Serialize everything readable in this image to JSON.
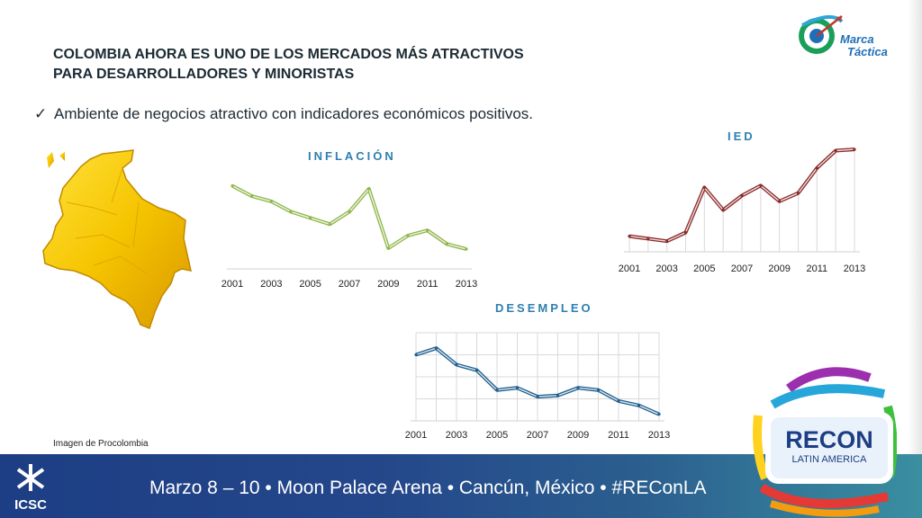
{
  "slide": {
    "title_line1": "COLOMBIA AHORA ES UNO DE LOS MERCADOS MÁS ATRACTIVOS",
    "title_line2": "PARA DESARROLLADORES Y MINORISTAS",
    "bullet": "Ambiente de negocios atractivo con indicadores económicos positivos.",
    "bullet_icon": "check-icon",
    "caption": "Imagen de Procolombia"
  },
  "logo": {
    "line1": "Marca",
    "line2": "Táctica"
  },
  "footer": {
    "text": "Marzo 8 – 10 • Moon Palace Arena • Cancún, México • #REConLA",
    "icsc_label": "ICSC",
    "recon_label": "RECON",
    "recon_sub": "LATIN AMERICA"
  },
  "colors": {
    "title": "#1c2a33",
    "chart_title": "#2f7fb0",
    "inflacion_line": "#8fb64a",
    "ied_line": "#8b2a2a",
    "desempleo_line": "#1f5f8f",
    "footer": "#1d3e84"
  },
  "chart_data": [
    {
      "type": "line",
      "title": "INFLACIÓN",
      "x": [
        2001,
        2002,
        2003,
        2004,
        2005,
        2006,
        2007,
        2008,
        2009,
        2010,
        2011,
        2012,
        2013
      ],
      "tick_labels": [
        "2001",
        "2003",
        "2005",
        "2007",
        "2009",
        "2011",
        "2013"
      ],
      "values": [
        8.0,
        7.0,
        6.5,
        5.5,
        4.9,
        4.3,
        5.5,
        7.7,
        2.0,
        3.2,
        3.7,
        2.4,
        1.9
      ],
      "ylim": [
        0,
        9
      ],
      "grid": false
    },
    {
      "type": "line",
      "title": "IED",
      "x": [
        2001,
        2002,
        2003,
        2004,
        2005,
        2006,
        2007,
        2008,
        2009,
        2010,
        2011,
        2012,
        2013
      ],
      "tick_labels": [
        "2001",
        "2003",
        "2005",
        "2007",
        "2009",
        "2011",
        "2013"
      ],
      "values": [
        2.5,
        2.1,
        1.7,
        3.1,
        10.3,
        6.7,
        9.0,
        10.6,
        8.1,
        9.4,
        13.4,
        16.2,
        16.4
      ],
      "ylim": [
        0,
        18
      ],
      "grid": "vertical"
    },
    {
      "type": "line",
      "title": "DESEMPLEO",
      "x": [
        2001,
        2002,
        2003,
        2004,
        2005,
        2006,
        2007,
        2008,
        2009,
        2010,
        2011,
        2012,
        2013
      ],
      "tick_labels": [
        "2001",
        "2003",
        "2005",
        "2007",
        "2009",
        "2011",
        "2013"
      ],
      "values": [
        15.0,
        15.6,
        14.1,
        13.6,
        11.8,
        12.0,
        11.2,
        11.3,
        12.0,
        11.8,
        10.8,
        10.4,
        9.6
      ],
      "ylim": [
        9,
        17
      ],
      "grid": "both"
    }
  ]
}
